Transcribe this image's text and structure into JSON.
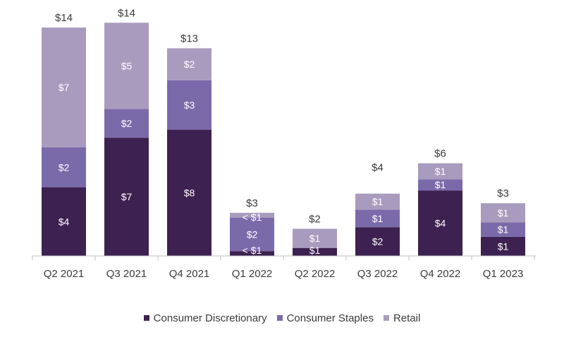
{
  "chart_data": {
    "type": "bar",
    "stacked": true,
    "categories": [
      "Q2 2021",
      "Q3 2021",
      "Q4 2021",
      "Q1 2022",
      "Q2 2022",
      "Q3 2022",
      "Q4 2022",
      "Q1 2023"
    ],
    "series": [
      {
        "name": "Consumer Discretionary",
        "color": "#3d2150",
        "values": [
          4.3,
          7.4,
          7.9,
          0.3,
          0.5,
          1.8,
          4.1,
          1.2
        ],
        "labels": [
          "$4",
          "$7",
          "$8",
          "< $1",
          "$1",
          "$2",
          "$4",
          "$1"
        ]
      },
      {
        "name": "Consumer Staples",
        "color": "#7b6aaa",
        "values": [
          2.5,
          1.8,
          3.1,
          2.1,
          0.0,
          1.1,
          0.7,
          0.9
        ],
        "labels": [
          "$2",
          "$2",
          "$3",
          "$2",
          "",
          "$1",
          "$1",
          "$1"
        ]
      },
      {
        "name": "Retail",
        "color": "#a99bbd",
        "values": [
          7.5,
          5.4,
          2.0,
          0.3,
          1.2,
          1.0,
          1.0,
          1.2
        ],
        "labels": [
          "$7",
          "$5",
          "$2",
          "< $1",
          "$1",
          "$1",
          "$1",
          "$1"
        ]
      }
    ],
    "totals": [
      "$14",
      "$14",
      "$13",
      "$3",
      "$2",
      "$4",
      "$6",
      "$3"
    ],
    "ylim": [
      0,
      14.7
    ],
    "grid": false,
    "legend_position": "bottom"
  }
}
